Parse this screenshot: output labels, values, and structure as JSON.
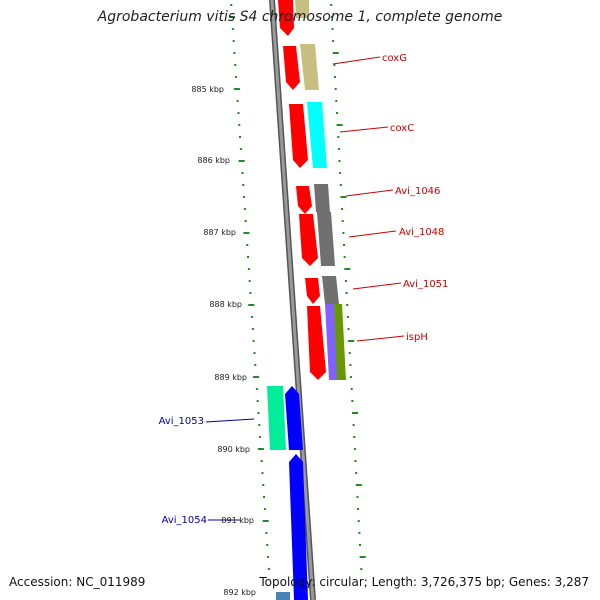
{
  "title": "Agrobacterium vitis S4 chromosome 1, complete genome",
  "footer": {
    "accession": "Accession: NC_011989",
    "stats": "Topology: circular; Length: 3,726,375 bp; Genes: 3,287"
  },
  "colors": {
    "backbone": "#808080",
    "tick": "#228b22",
    "label_forward": "#cc0000",
    "label_reverse": "#0000aa",
    "gene_red": "#ff0000",
    "gene_olive": "#c8c080",
    "gene_cyan": "#00ffff",
    "gene_gray": "#707070",
    "gene_purple": "#8060ff",
    "gene_green": "#669900",
    "gene_mint": "#00ee99",
    "gene_blue": "#0000ff",
    "gene_steel": "#4682b4"
  },
  "scale_labels": [
    "885 kbp",
    "886 kbp",
    "887 kbp",
    "888 kbp",
    "889 kbp",
    "890 kbp",
    "891 kbp",
    "892 kbp"
  ],
  "gene_labels": [
    "coxG",
    "coxC",
    "Avi_1046",
    "Avi_1048",
    "Avi_1051",
    "ispH",
    "Avi_1053",
    "Avi_1054"
  ]
}
